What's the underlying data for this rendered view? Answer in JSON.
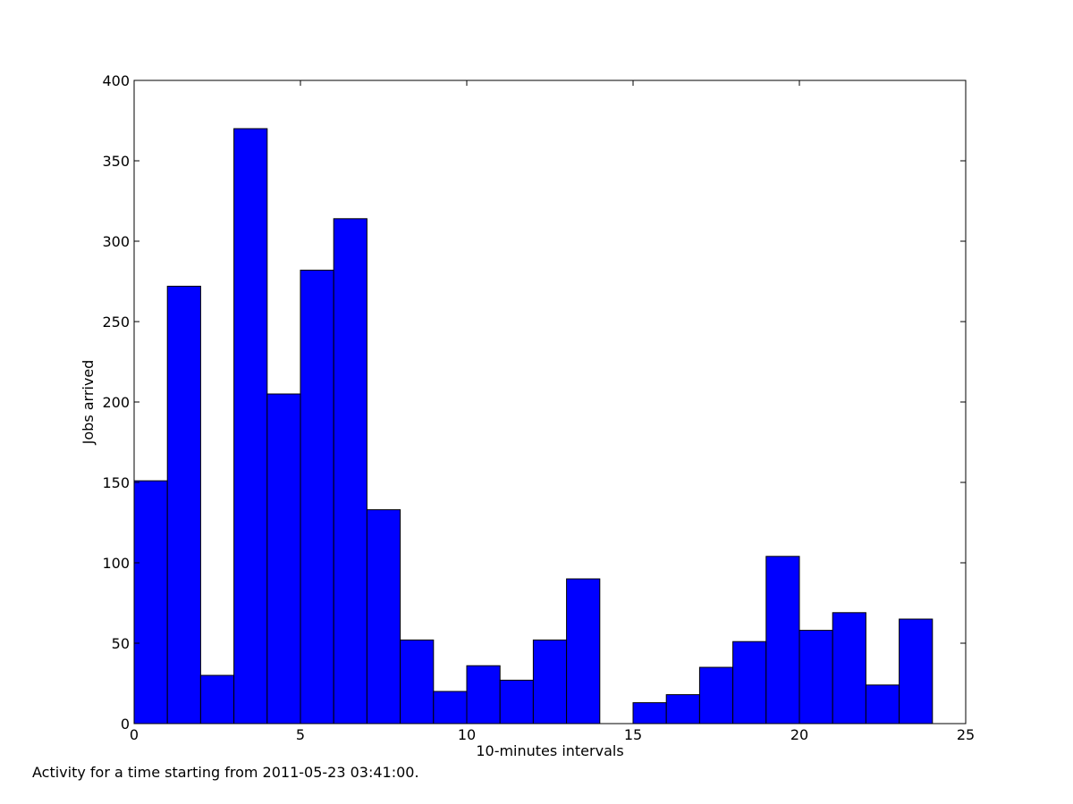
{
  "chart_data": {
    "type": "bar",
    "xlabel": "10-minutes intervals",
    "ylabel": "Jobs arrived",
    "xlim": [
      0,
      25
    ],
    "ylim": [
      0,
      400
    ],
    "xticks": [
      0,
      5,
      10,
      15,
      20,
      25
    ],
    "yticks": [
      0,
      50,
      100,
      150,
      200,
      250,
      300,
      350,
      400
    ],
    "bin_width": 1,
    "x": [
      0,
      1,
      2,
      3,
      4,
      5,
      6,
      7,
      8,
      9,
      10,
      11,
      12,
      13,
      14,
      15,
      16,
      17,
      18,
      19,
      20,
      21,
      22,
      23
    ],
    "values": [
      151,
      272,
      30,
      370,
      205,
      282,
      314,
      133,
      52,
      20,
      36,
      27,
      52,
      90,
      0,
      13,
      18,
      35,
      51,
      104,
      58,
      69,
      24,
      65
    ],
    "bar_color": "#0000ff",
    "grid": false,
    "legend": "none"
  },
  "caption": "Activity for a time starting from 2011-05-23 03:41:00."
}
